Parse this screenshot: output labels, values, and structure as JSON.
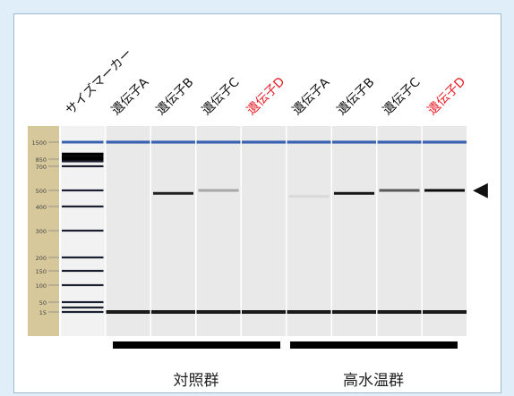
{
  "lanes": [
    {
      "label": "サイズマーカー",
      "color": "#111111",
      "bands": []
    },
    {
      "label": "遺伝子A",
      "color": "#111111",
      "bands": []
    },
    {
      "label": "遺伝子B",
      "color": "#111111",
      "bands": [
        {
          "size": 480,
          "intensity": 0.9
        }
      ]
    },
    {
      "label": "遺伝子C",
      "color": "#111111",
      "bands": [
        {
          "size": 500,
          "intensity": 0.3
        }
      ]
    },
    {
      "label": "遺伝子D",
      "color": "#e8202a",
      "bands": []
    },
    {
      "label": "遺伝子A",
      "color": "#111111",
      "bands": [
        {
          "size": 460,
          "intensity": 0.08
        }
      ]
    },
    {
      "label": "遺伝子B",
      "color": "#111111",
      "bands": [
        {
          "size": 480,
          "intensity": 0.95
        }
      ]
    },
    {
      "label": "遺伝子C",
      "color": "#111111",
      "bands": [
        {
          "size": 500,
          "intensity": 0.65
        }
      ]
    },
    {
      "label": "遺伝子D",
      "color": "#e8202a",
      "bands": [
        {
          "size": 500,
          "intensity": 1.0
        }
      ]
    }
  ],
  "ladder": {
    "marks": [
      1500,
      850,
      700,
      500,
      400,
      300,
      200,
      150,
      100,
      50,
      15
    ],
    "marks_text": [
      "1500",
      "850",
      "700",
      "500",
      "400",
      "300",
      "200",
      "150",
      "100",
      "50",
      "15"
    ],
    "marker_bands": [
      1500,
      1000,
      900,
      850,
      800,
      700,
      500,
      400,
      300,
      200,
      150,
      100,
      50,
      25,
      15
    ],
    "upper_marker_size": 1500,
    "lower_marker_size": 15
  },
  "groups": [
    {
      "label": "対照群"
    },
    {
      "label": "高水温群"
    }
  ],
  "arrow": {
    "glyph": "◀",
    "points_to_size": 500
  },
  "colors": {
    "ladder_strip": "#d6c89a",
    "upper_marker": "#3a62b3",
    "lower_marker": "#1a1a1a",
    "lane_bg": "#e9e9e9"
  }
}
